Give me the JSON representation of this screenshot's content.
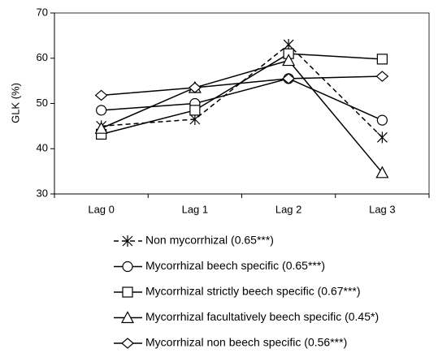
{
  "chart_data": {
    "type": "line",
    "y_label": "GLK (%)",
    "categories": [
      "Lag 0",
      "Lag 1",
      "Lag 2",
      "Lag 3"
    ],
    "ylim": [
      30,
      70
    ],
    "yticks": [
      30,
      40,
      50,
      60,
      70
    ],
    "series": [
      {
        "name": "Non mycorrhizal (0.65***)",
        "color": "#000000",
        "marker": "asterisk",
        "dashed": true,
        "values": [
          45,
          46.5,
          63,
          42.5
        ]
      },
      {
        "name": "Mycorrhizal beech specific (0.65***)",
        "color": "#000000",
        "marker": "circle",
        "dashed": false,
        "values": [
          48.5,
          50,
          55.5,
          46.3
        ]
      },
      {
        "name": "Mycorrhizal strictly beech specific (0.67***)",
        "color": "#000000",
        "marker": "square",
        "dashed": false,
        "values": [
          43.2,
          48.5,
          61,
          59.8
        ]
      },
      {
        "name": "Mycorrhizal facultatively beech specific (0.45*)",
        "color": "#000000",
        "marker": "triangle",
        "dashed": false,
        "values": [
          44.5,
          53.5,
          59.5,
          34.7
        ]
      },
      {
        "name": "Mycorrhizal non beech specific (0.56***)",
        "color": "#000000",
        "marker": "diamond",
        "dashed": false,
        "values": [
          51.8,
          53.5,
          55.5,
          56
        ]
      }
    ]
  }
}
